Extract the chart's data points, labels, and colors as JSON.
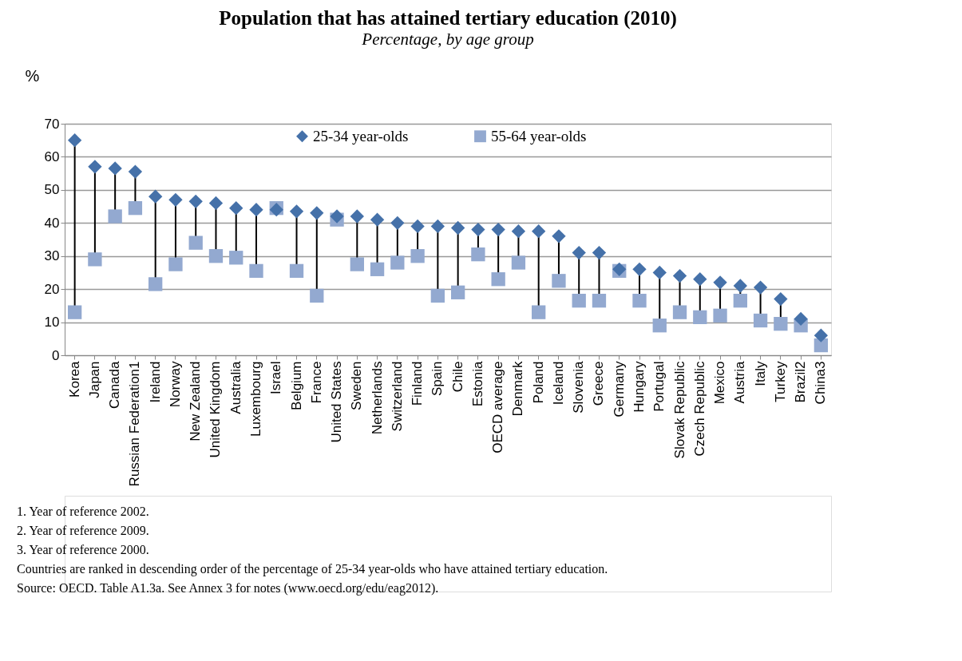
{
  "chart_data": {
    "type": "scatter",
    "title": "Population that has attained tertiary education (2010)",
    "subtitle": "Percentage, by age group",
    "ylabel": "%",
    "categories": [
      "Korea",
      "Japan",
      "Canada",
      "Russian Federation1",
      "Ireland",
      "Norway",
      "New Zealand",
      "United Kingdom",
      "Australia",
      "Luxembourg",
      "Israel",
      "Belgium",
      "France",
      "United States",
      "Sweden",
      "Netherlands",
      "Switzerland",
      "Finland",
      "Spain",
      "Chile",
      "Estonia",
      "OECD average",
      "Denmark",
      "Poland",
      "Iceland",
      "Slovenia",
      "Greece",
      "Germany",
      "Hungary",
      "Portugal",
      "Slovak Republic",
      "Czech Republic",
      "Mexico",
      "Austria",
      "Italy",
      "Turkey",
      "Brazil2",
      "China3"
    ],
    "series": [
      {
        "name": "25-34 year-olds",
        "color": "#4571a9",
        "marker": "diamond",
        "values": [
          65,
          57,
          56.5,
          55.5,
          48,
          47,
          46.5,
          46,
          44.5,
          44,
          44,
          43.5,
          43,
          42,
          42,
          41,
          40,
          39,
          39,
          38.5,
          38,
          38,
          37.5,
          37.5,
          36,
          31,
          31,
          26,
          26,
          25,
          24,
          23,
          22,
          21,
          20.5,
          17,
          11,
          6
        ]
      },
      {
        "name": "55-64 year-olds",
        "color": "#93a9d0",
        "marker": "square",
        "values": [
          13,
          29,
          42,
          44.5,
          21.5,
          27.5,
          34,
          30,
          29.5,
          25.5,
          44.5,
          25.5,
          18,
          41,
          27.5,
          26,
          28,
          30,
          18,
          19,
          30.5,
          23,
          28,
          13,
          22.5,
          16.5,
          16.5,
          25.5,
          16.5,
          9,
          13,
          11.5,
          12,
          16.5,
          10.5,
          9.5,
          9,
          3
        ]
      }
    ],
    "ylim": [
      0,
      70
    ],
    "yticks": [
      0,
      10,
      20,
      30,
      40,
      50,
      60,
      70
    ],
    "grid": "y",
    "legend": "top",
    "annotations": [
      "1. Year of reference 2002.",
      "2. Year of reference 2009.",
      "3. Year of reference 2000.",
      "Countries are ranked in descending order of the percentage of 25-34 year-olds who have attained tertiary education.",
      "Source: OECD. Table A1.3a. See Annex 3 for notes (www.oecd.org/edu/eag2012)."
    ]
  }
}
